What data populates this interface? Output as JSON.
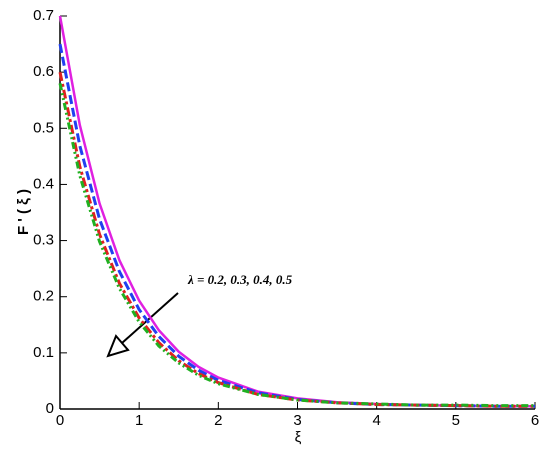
{
  "chart_data": {
    "type": "line",
    "xlabel": "ξ",
    "ylabel": "F ' ( ξ )",
    "annotation": "λ = 0.2, 0.3, 0.4, 0.5",
    "x": [
      0,
      0.25,
      0.5,
      0.75,
      1,
      1.25,
      1.5,
      1.75,
      2,
      2.5,
      3,
      3.5,
      4,
      4.5,
      5,
      5.5,
      6
    ],
    "series": [
      {
        "color": "#e020e0",
        "dash": "solid",
        "values": [
          0.7,
          0.506,
          0.366,
          0.265,
          0.193,
          0.14,
          0.102,
          0.075,
          0.056,
          0.031,
          0.019,
          0.012,
          0.009,
          0.007,
          0.006,
          0.005,
          0.005
        ]
      },
      {
        "color": "#2040f0",
        "dash": "dashed",
        "values": [
          0.65,
          0.469,
          0.338,
          0.245,
          0.177,
          0.129,
          0.094,
          0.069,
          0.051,
          0.029,
          0.017,
          0.011,
          0.008,
          0.007,
          0.006,
          0.005,
          0.005
        ]
      },
      {
        "color": "#e02020",
        "dash": "dashdot",
        "values": [
          0.6,
          0.432,
          0.311,
          0.224,
          0.162,
          0.118,
          0.086,
          0.063,
          0.047,
          0.026,
          0.016,
          0.011,
          0.008,
          0.007,
          0.006,
          0.005,
          0.005
        ]
      },
      {
        "color": "#20b020",
        "dash": "dashdotdot",
        "values": [
          0.58,
          0.416,
          0.298,
          0.215,
          0.155,
          0.112,
          0.082,
          0.06,
          0.045,
          0.026,
          0.016,
          0.011,
          0.009,
          0.007,
          0.007,
          0.006,
          0.006
        ]
      }
    ],
    "xlim": [
      0,
      6
    ],
    "xticks": [
      0,
      1,
      2,
      3,
      4,
      5,
      6
    ],
    "ylim": [
      0,
      0.7
    ],
    "yticks": [
      0,
      0.1,
      0.2,
      0.3,
      0.4,
      0.5,
      0.6,
      0.7
    ],
    "grid": false
  }
}
